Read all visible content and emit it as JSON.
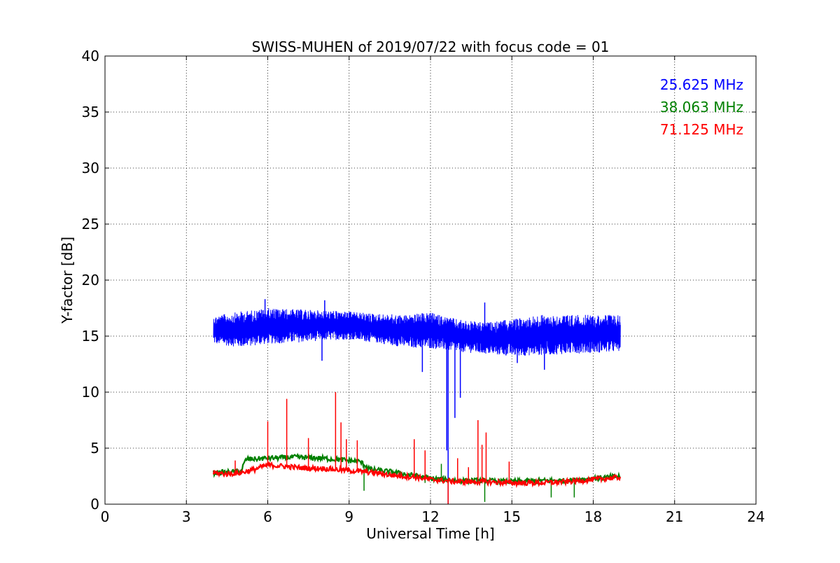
{
  "chart_data": {
    "type": "line",
    "title": "SWISS-MUHEN of 2019/07/22 with focus code = 01",
    "xlabel": "Universal Time [h]",
    "ylabel": "Y-factor [dB]",
    "xlim": [
      0,
      24
    ],
    "ylim": [
      0,
      40
    ],
    "xticks": [
      0,
      3,
      6,
      9,
      12,
      15,
      18,
      21,
      24
    ],
    "yticks": [
      0,
      5,
      10,
      15,
      20,
      25,
      30,
      35,
      40
    ],
    "grid": true,
    "legend_position": "top-right",
    "series": [
      {
        "name": "25.625 MHz",
        "color": "#0000ff",
        "band": true,
        "x": [
          4.0,
          5.0,
          6.0,
          7.0,
          8.0,
          9.0,
          10.0,
          11.0,
          12.0,
          13.0,
          14.0,
          15.0,
          16.0,
          17.0,
          18.0,
          19.0
        ],
        "low": [
          14.3,
          14.0,
          14.3,
          14.4,
          14.6,
          14.7,
          14.4,
          14.0,
          13.9,
          13.6,
          13.4,
          13.2,
          13.3,
          13.4,
          13.5,
          13.6
        ],
        "high": [
          16.8,
          17.2,
          17.5,
          17.4,
          17.3,
          17.2,
          17.0,
          16.9,
          17.1,
          16.5,
          16.2,
          16.5,
          16.9,
          16.9,
          16.9,
          16.9
        ],
        "spikes": [
          [
            5.9,
            18.3
          ],
          [
            8.1,
            18.2
          ],
          [
            8.0,
            12.8
          ],
          [
            11.7,
            11.8
          ],
          [
            12.6,
            4.8
          ],
          [
            12.65,
            0
          ],
          [
            12.9,
            7.7
          ],
          [
            13.1,
            9.5
          ],
          [
            15.2,
            12.6
          ],
          [
            16.2,
            12.0
          ],
          [
            14.0,
            18.0
          ]
        ]
      },
      {
        "name": "38.063 MHz",
        "color": "#008000",
        "band": false,
        "x": [
          4.0,
          5.0,
          5.2,
          6.0,
          7.0,
          8.0,
          9.0,
          9.4,
          9.8,
          10.5,
          11.0,
          12.0,
          13.0,
          14.0,
          15.0,
          16.0,
          17.0,
          18.0,
          19.0
        ],
        "y": [
          2.8,
          2.9,
          4.0,
          4.1,
          4.2,
          4.1,
          3.9,
          3.8,
          3.1,
          2.9,
          2.7,
          2.3,
          2.1,
          2.1,
          2.0,
          2.1,
          2.1,
          2.3,
          2.5
        ],
        "spikes": [
          [
            9.55,
            1.2
          ],
          [
            11.8,
            1.9
          ],
          [
            12.4,
            3.6
          ],
          [
            14.0,
            0.2
          ],
          [
            16.45,
            0.6
          ],
          [
            17.3,
            0.6
          ]
        ]
      },
      {
        "name": "71.125 MHz",
        "color": "#ff0000",
        "band": false,
        "x": [
          4.0,
          4.5,
          5.0,
          5.5,
          6.0,
          6.5,
          7.0,
          7.5,
          8.0,
          8.5,
          9.0,
          9.5,
          10.0,
          10.5,
          11.0,
          11.5,
          12.0,
          12.5,
          13.0,
          13.5,
          14.0,
          15.0,
          16.0,
          17.0,
          18.0,
          19.0
        ],
        "y": [
          2.8,
          2.7,
          2.8,
          3.1,
          3.5,
          3.4,
          3.3,
          3.2,
          3.2,
          3.1,
          3.0,
          2.9,
          2.8,
          2.6,
          2.5,
          2.4,
          2.2,
          2.1,
          2.0,
          2.0,
          2.0,
          1.9,
          1.9,
          2.0,
          2.2,
          2.4
        ],
        "spikes": [
          [
            4.8,
            3.9
          ],
          [
            6.0,
            7.4
          ],
          [
            6.7,
            9.4
          ],
          [
            7.5,
            5.9
          ],
          [
            8.5,
            10.0
          ],
          [
            8.7,
            7.3
          ],
          [
            8.9,
            5.8
          ],
          [
            9.3,
            5.7
          ],
          [
            11.4,
            5.8
          ],
          [
            11.8,
            4.8
          ],
          [
            12.65,
            -0.3
          ],
          [
            13.0,
            4.1
          ],
          [
            13.4,
            3.3
          ],
          [
            13.75,
            7.5
          ],
          [
            13.9,
            5.3
          ],
          [
            14.05,
            6.4
          ],
          [
            14.9,
            3.8
          ]
        ]
      }
    ]
  }
}
